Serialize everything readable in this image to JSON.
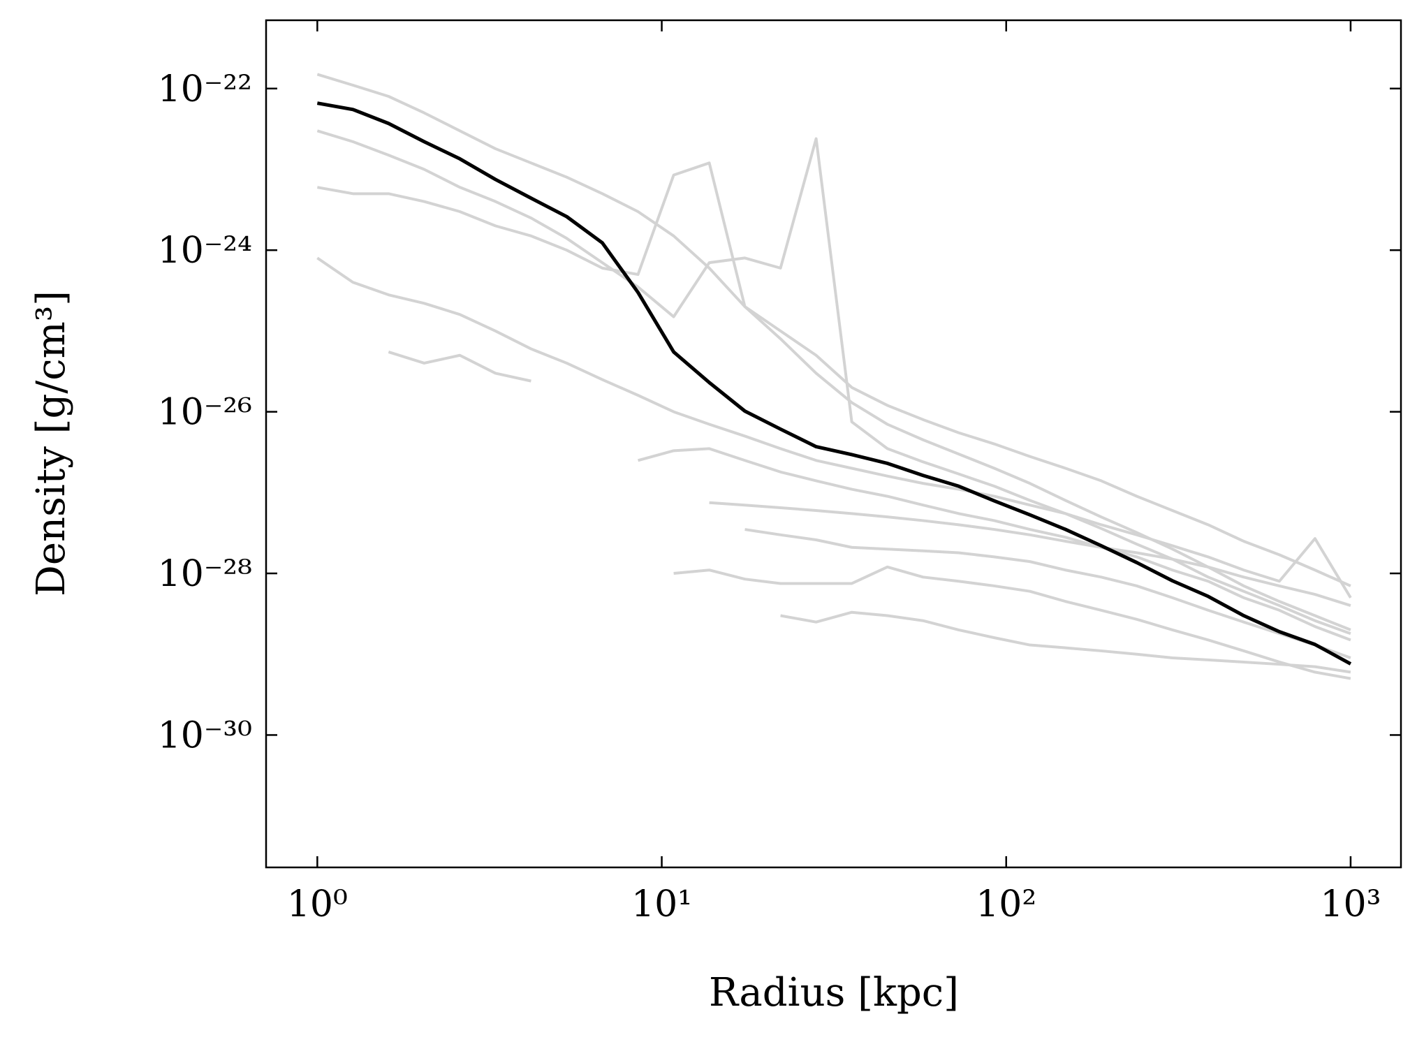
{
  "chart_data": {
    "type": "line",
    "xlabel": "Radius [kpc]",
    "ylabel": "Density [g/cm³]",
    "xscale": "log",
    "yscale": "log",
    "xlim": [
      0.71,
      1400
    ],
    "ylim": [
      2.3e-32,
      7e-22
    ],
    "xticks": [
      {
        "value": 1,
        "label": "10⁰"
      },
      {
        "value": 10,
        "label": "10¹"
      },
      {
        "value": 100,
        "label": "10²"
      },
      {
        "value": 1000,
        "label": "10³"
      }
    ],
    "yticks": [
      {
        "value": 1e-30,
        "label": "10⁻³⁰"
      },
      {
        "value": 1e-28,
        "label": "10⁻²⁸"
      },
      {
        "value": 1e-26,
        "label": "10⁻²⁶"
      },
      {
        "value": 1e-24,
        "label": "10⁻²⁴"
      },
      {
        "value": 1e-22,
        "label": "10⁻²²"
      }
    ],
    "x": [
      1,
      1.269,
      1.61,
      2.043,
      2.593,
      3.29,
      4.175,
      5.298,
      6.723,
      8.532,
      10.83,
      13.74,
      17.43,
      22.12,
      28.07,
      35.62,
      45.2,
      57.36,
      72.79,
      92.37,
      117.2,
      148.7,
      188.7,
      239.5,
      303.9,
      385.7,
      489.4,
      621.0,
      788.0,
      1000
    ],
    "series": [
      {
        "color": "#d3d3d3",
        "values": [
          1.5e-22,
          1.1e-22,
          8e-23,
          5e-23,
          3e-23,
          1.8e-23,
          1.2e-23,
          8e-24,
          5e-24,
          3e-24,
          1.5e-24,
          6e-25,
          2e-25,
          8e-26,
          3e-26,
          1.3e-26,
          7e-27,
          4.5e-27,
          3e-27,
          2e-27,
          1.3e-27,
          8e-28,
          5e-28,
          3.2e-28,
          2e-28,
          1.2e-28,
          7e-29,
          4.5e-29,
          3e-29,
          2e-29
        ]
      },
      {
        "color": "#d3d3d3",
        "values": [
          3e-23,
          2.2e-23,
          1.5e-23,
          1e-23,
          6e-24,
          4e-24,
          2.5e-24,
          1.4e-24,
          7e-25,
          3.5e-25,
          1.5e-25,
          7e-25,
          8e-25,
          6e-25,
          2.4e-23,
          7.5e-27,
          3.5e-27,
          2.4e-27,
          1.7e-27,
          1.2e-27,
          8e-28,
          5.5e-28,
          3.6e-28,
          2.3e-28,
          1.5e-28,
          9e-29,
          6e-29,
          4e-29,
          2.6e-29,
          1.8e-29
        ]
      },
      {
        "color": "#d3d3d3",
        "values": [
          null,
          null,
          5.5e-26,
          4e-26,
          5e-26,
          3e-26,
          2.4e-26,
          null,
          null,
          null,
          null,
          null,
          null,
          null,
          null,
          null,
          null,
          null,
          null,
          null,
          null,
          null,
          null,
          null,
          null,
          null,
          null,
          null,
          null,
          null
        ]
      },
      {
        "color": "#d3d3d3",
        "values": [
          null,
          null,
          null,
          null,
          null,
          null,
          null,
          null,
          null,
          null,
          1e-28,
          1.1e-28,
          8.5e-29,
          7.5e-29,
          7.5e-29,
          7.5e-29,
          1.2e-28,
          9e-29,
          8e-29,
          7e-29,
          6e-29,
          4.5e-29,
          3.5e-29,
          2.7e-29,
          2e-29,
          1.5e-29,
          1.1e-29,
          8e-30,
          6e-30,
          5e-30
        ]
      },
      {
        "color": "#d3d3d3",
        "values": [
          null,
          null,
          null,
          null,
          null,
          null,
          null,
          null,
          null,
          null,
          null,
          null,
          null,
          3e-29,
          2.5e-29,
          3.3e-29,
          3e-29,
          2.6e-29,
          2e-29,
          1.6e-29,
          1.3e-29,
          1.2e-29,
          1.1e-29,
          1e-29,
          9e-30,
          8.5e-30,
          8e-30,
          7.5e-30,
          7e-30,
          6e-30
        ]
      },
      {
        "color": "#d3d3d3",
        "values": [
          6e-24,
          5e-24,
          5e-24,
          4e-24,
          3e-24,
          2e-24,
          1.5e-24,
          1e-24,
          6e-25,
          5e-25,
          8.5e-24,
          1.2e-23,
          2e-25,
          1e-25,
          5e-26,
          2e-26,
          1.2e-26,
          8e-27,
          5.5e-27,
          4e-27,
          2.8e-27,
          2e-27,
          1.4e-27,
          9e-28,
          6e-28,
          4e-28,
          2.5e-28,
          1.7e-28,
          1.1e-28,
          7e-29
        ]
      },
      {
        "color": "#d3d3d3",
        "values": [
          8e-25,
          4e-25,
          2.8e-25,
          2.2e-25,
          1.6e-25,
          1e-25,
          6e-26,
          4e-26,
          2.5e-26,
          1.6e-26,
          1e-26,
          7e-27,
          5e-27,
          3.5e-27,
          2.5e-27,
          2e-27,
          1.6e-27,
          1.3e-27,
          1.1e-27,
          9e-28,
          7e-28,
          5.5e-28,
          4e-28,
          3e-28,
          2.2e-28,
          1.6e-28,
          1.1e-28,
          8e-29,
          2.7e-28,
          5e-29
        ]
      },
      {
        "color": "#d3d3d3",
        "values": [
          null,
          null,
          null,
          null,
          null,
          null,
          null,
          null,
          null,
          2.5e-27,
          3.3e-27,
          3.5e-27,
          2.5e-27,
          1.8e-27,
          1.4e-27,
          1.1e-27,
          9e-28,
          7e-28,
          5.5e-28,
          4.5e-28,
          3.5e-28,
          2.8e-28,
          2.1e-28,
          1.6e-28,
          1.1e-28,
          8e-29,
          5e-29,
          3.5e-29,
          2.2e-29,
          1.5e-29
        ]
      },
      {
        "color": "#d3d3d3",
        "values": [
          null,
          null,
          null,
          null,
          null,
          null,
          null,
          null,
          null,
          null,
          null,
          null,
          3.5e-28,
          3e-28,
          2.6e-28,
          2.1e-28,
          2e-28,
          1.9e-28,
          1.8e-28,
          1.6e-28,
          1.4e-28,
          1.1e-28,
          9e-29,
          7e-29,
          5e-29,
          3.5e-29,
          2.5e-29,
          1.8e-29,
          1.3e-29,
          9e-30
        ]
      },
      {
        "color": "#d3d3d3",
        "values": [
          null,
          null,
          null,
          null,
          null,
          null,
          null,
          null,
          null,
          null,
          null,
          7.5e-28,
          7e-28,
          6.5e-28,
          6e-28,
          5.5e-28,
          5e-28,
          4.5e-28,
          4e-28,
          3.5e-28,
          3e-28,
          2.5e-28,
          2.1e-28,
          1.8e-28,
          1.5e-28,
          1.2e-28,
          9e-29,
          7e-29,
          5.5e-29,
          4e-29
        ]
      },
      {
        "color": "#000000",
        "values": [
          6.6e-23,
          5.5e-23,
          3.7e-23,
          2.2e-23,
          1.35e-23,
          7.5e-24,
          4.4e-24,
          2.6e-24,
          1.23e-24,
          3e-25,
          5.5e-26,
          2.3e-26,
          1.02e-26,
          6.1e-27,
          3.7e-27,
          2.95e-27,
          2.3e-27,
          1.63e-27,
          1.2e-27,
          7.9e-28,
          5.3e-28,
          3.5e-28,
          2.2e-28,
          1.36e-28,
          8.1e-29,
          5.2e-29,
          3e-29,
          1.9e-29,
          1.32e-29,
          7.6e-30
        ]
      }
    ]
  }
}
